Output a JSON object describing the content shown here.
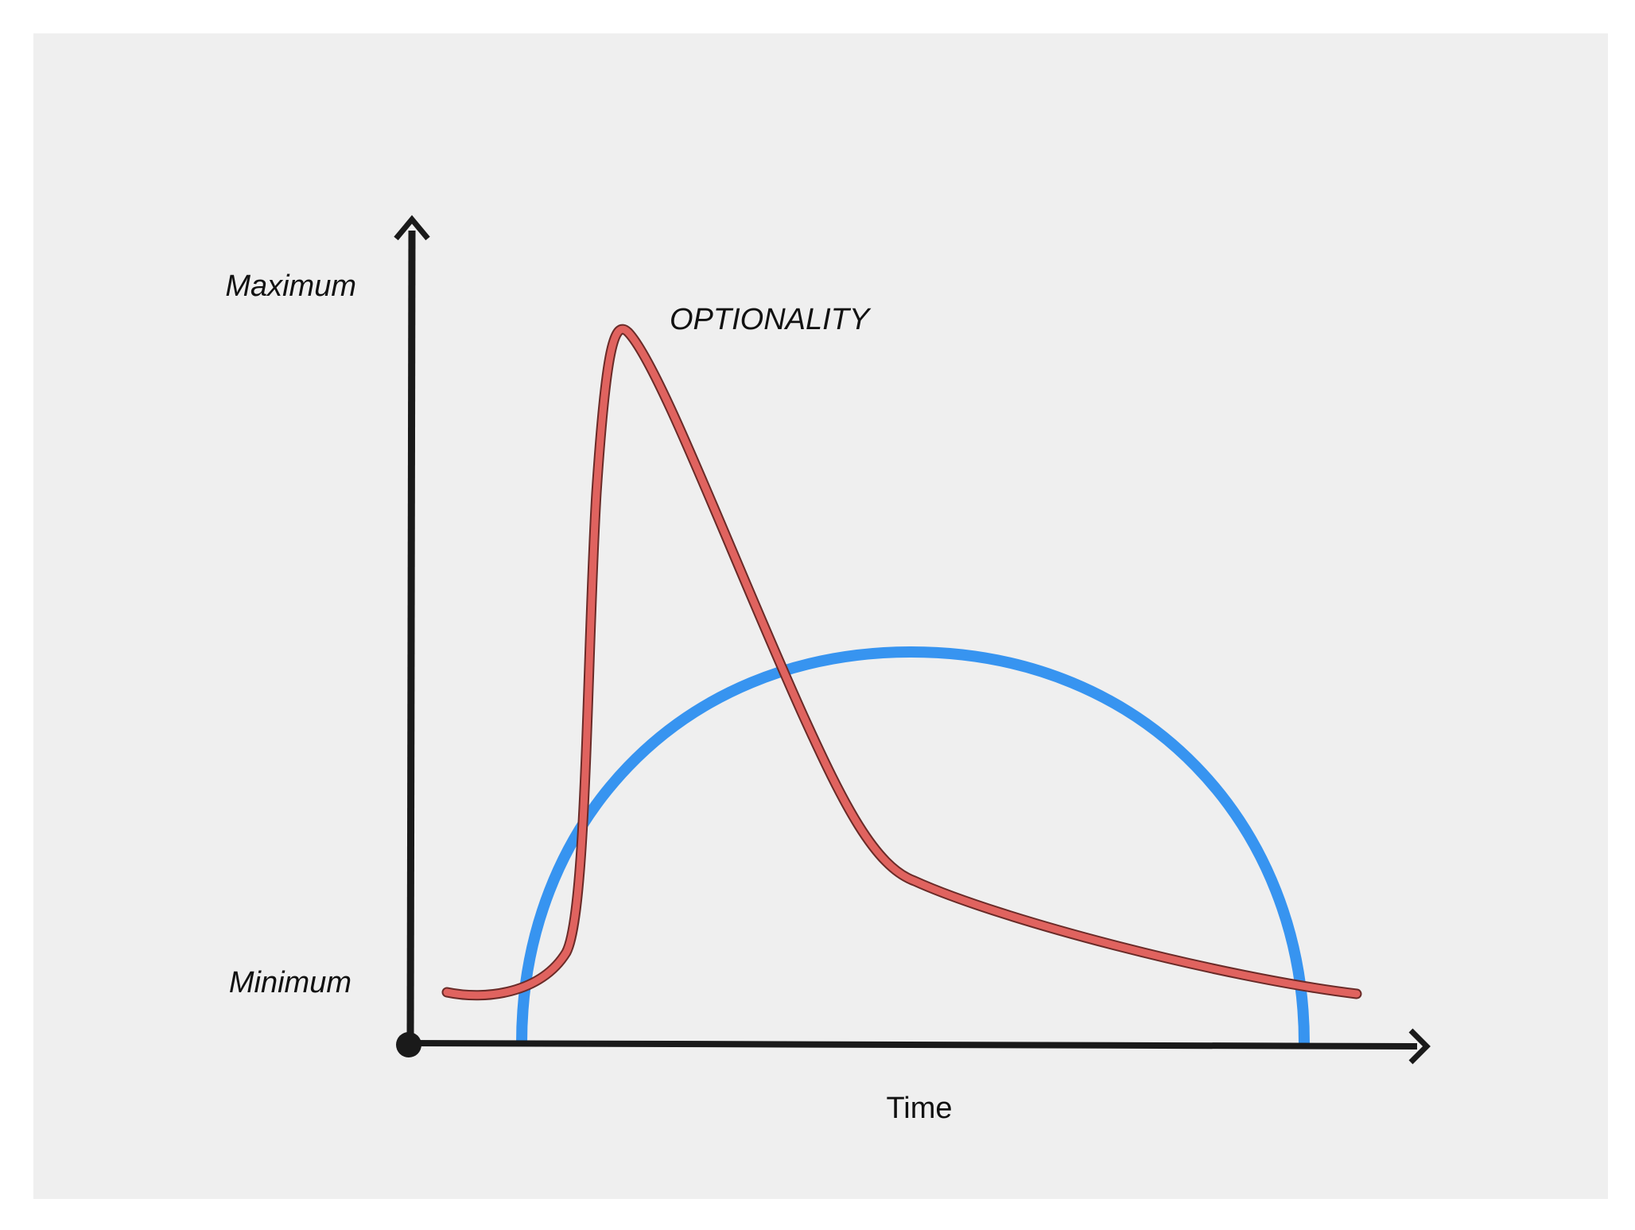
{
  "diagram": {
    "y_labels": {
      "top": "Maximum",
      "bottom": "Minimum"
    },
    "x_label": "Time",
    "curve_annotation": "OPTIONALITY",
    "colors": {
      "background_panel": "#efefef",
      "page": "#ffffff",
      "axis": "#1a1a1a",
      "optionality_curve": "#e0635f",
      "blue_curve": "#3794f0"
    }
  }
}
